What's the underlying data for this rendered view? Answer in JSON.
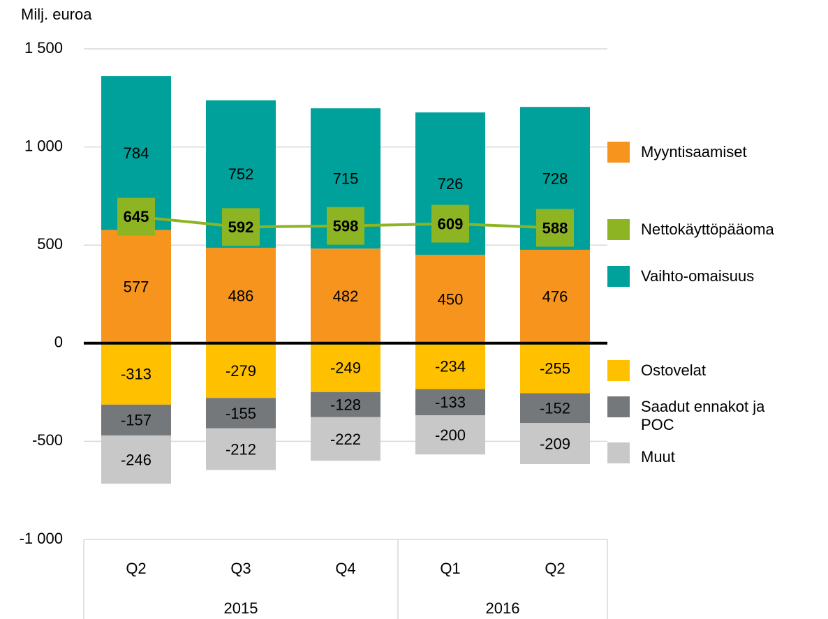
{
  "chart_data": {
    "type": "bar",
    "stacked": true,
    "y_axis_label": "Milj. euroa",
    "categories": [
      "Q2",
      "Q3",
      "Q4",
      "Q1",
      "Q2"
    ],
    "groups": [
      {
        "name": "2015",
        "count": 3
      },
      {
        "name": "2016",
        "count": 2
      }
    ],
    "ylim": [
      -1000,
      1500
    ],
    "yticks": [
      {
        "value": -1000,
        "label": "-1 000"
      },
      -500,
      0,
      500,
      {
        "value": 1000,
        "label": "1 000"
      },
      {
        "value": 1500,
        "label": "1 500"
      }
    ],
    "grid": true,
    "legend": "right",
    "series": [
      {
        "name": "Myyntisaamiset",
        "color": "#f7941d",
        "values": [
          577,
          486,
          482,
          450,
          476
        ]
      },
      {
        "name": "Nettokäyttöpääoma",
        "color": "#8cb423",
        "type": "line",
        "values": [
          645,
          592,
          598,
          609,
          588
        ]
      },
      {
        "name": "Vaihto-omaisuus",
        "color": "#00a19a",
        "values": [
          784,
          752,
          715,
          726,
          728
        ]
      },
      {
        "name": "Ostovelat",
        "color": "#ffc000",
        "values": [
          -313,
          -279,
          -249,
          -234,
          -255
        ]
      },
      {
        "name": "Saadut ennakot ja POC",
        "color": "#75787b",
        "values": [
          -157,
          -155,
          -128,
          -133,
          -152
        ]
      },
      {
        "name": "Muut",
        "color": "#c8c8c8",
        "values": [
          -246,
          -212,
          -222,
          -200,
          -209
        ]
      }
    ]
  }
}
